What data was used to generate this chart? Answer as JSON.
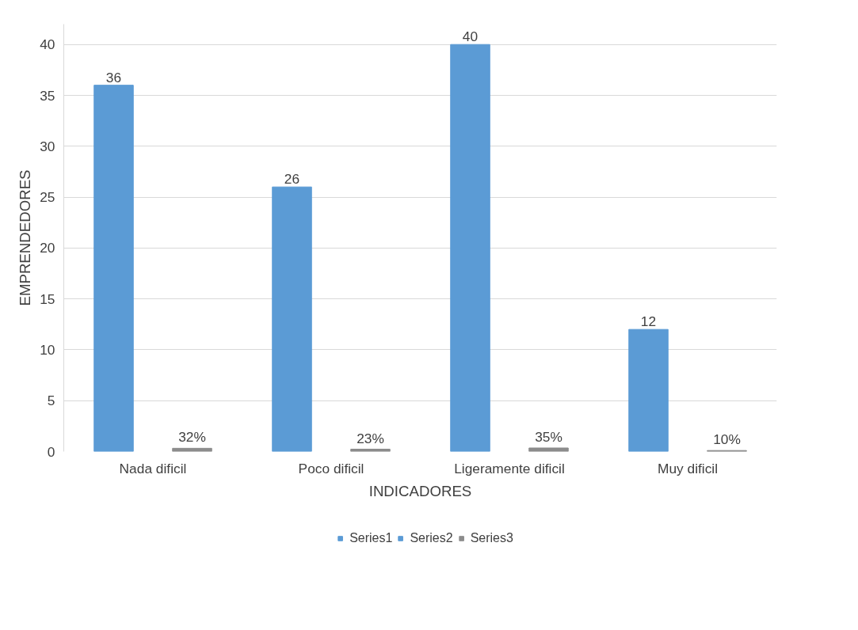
{
  "chart_data": {
    "type": "bar",
    "xlabel": "INDICADORES",
    "ylabel": "EMPRENDEDORES",
    "categories": [
      "Nada dificil",
      "Poco dificil",
      "Ligeramente dificil",
      "Muy dificil"
    ],
    "series": [
      {
        "name": "Series1",
        "color": "#5b9bd5",
        "values": [
          36,
          26,
          40,
          12
        ],
        "value_labels": [
          "36",
          "26",
          "40",
          "12"
        ]
      },
      {
        "name": "Series2",
        "color": "#5b9bd5",
        "values": [
          null,
          null,
          null,
          null
        ]
      },
      {
        "name": "Series3",
        "color": "#8c8c8c",
        "values": [
          0.32,
          0.23,
          0.35,
          0.1
        ],
        "value_labels": [
          "32%",
          "23%",
          "35%",
          "10%"
        ]
      }
    ],
    "ylim": [
      0,
      42
    ],
    "yticks": [
      0,
      5,
      10,
      15,
      20,
      25,
      30,
      35,
      40
    ],
    "grid": "y",
    "legend": "bottom"
  }
}
